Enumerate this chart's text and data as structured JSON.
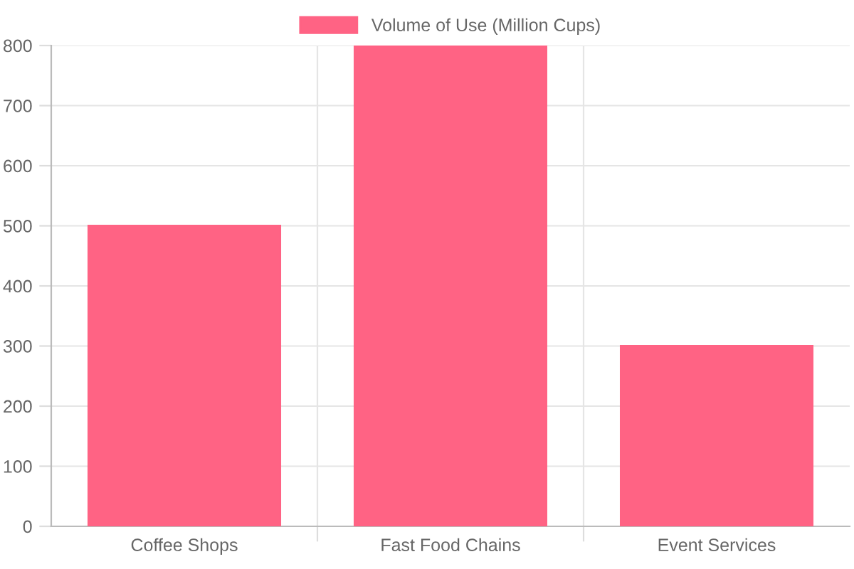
{
  "chart_data": {
    "type": "bar",
    "categories": [
      "Coffee Shops",
      "Fast Food Chains",
      "Event Services"
    ],
    "series": [
      {
        "name": "Volume of Use (Million Cups)",
        "color": "#ff6384",
        "values": [
          500,
          800,
          300
        ]
      }
    ],
    "ylim": [
      0,
      800
    ],
    "yticks": [
      0,
      100,
      200,
      300,
      400,
      500,
      600,
      700,
      800
    ],
    "grid": true,
    "legend": "top"
  }
}
